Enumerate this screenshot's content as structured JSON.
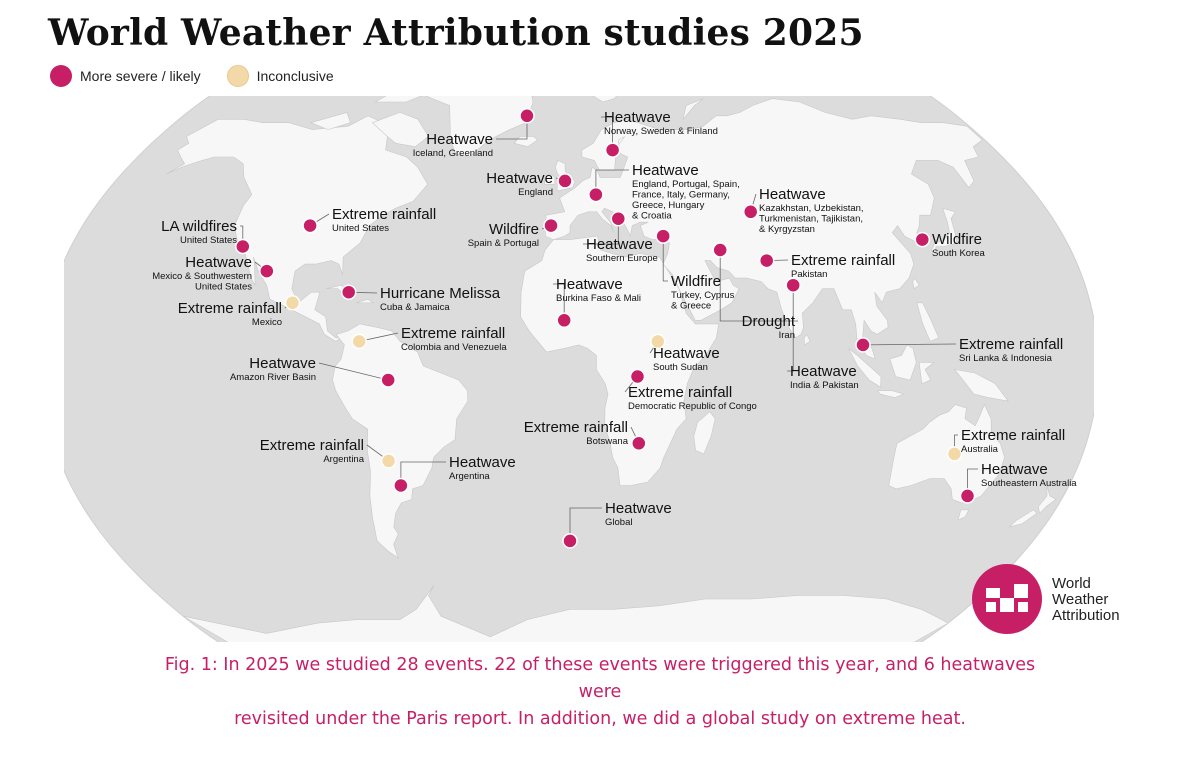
{
  "title": "World Weather Attribution studies 2025",
  "legend": {
    "severe": {
      "label": "More severe / likely",
      "color": "#c71f66"
    },
    "inconclusive": {
      "label": "Inconclusive",
      "color": "#f4d9a8"
    }
  },
  "events": [
    {
      "title": "Heatwave",
      "sub": [
        "Norway, Sweden & Finland"
      ],
      "status": "severe",
      "lon": 18,
      "lat": 62
    },
    {
      "title": "Heatwave",
      "sub": [
        "Iceland, Greenland"
      ],
      "status": "severe",
      "lon": -20,
      "lat": 72
    },
    {
      "title": "Heatwave",
      "sub": [
        "England"
      ],
      "status": "severe",
      "lon": -2,
      "lat": 53
    },
    {
      "title": "Heatwave",
      "sub": [
        "England, Portugal, Spain,",
        "France, Italy, Germany,",
        "Greece, Hungary",
        "& Croatia"
      ],
      "status": "severe",
      "lon": 10,
      "lat": 49
    },
    {
      "title": "Heatwave",
      "sub": [
        "Kazakhstan, Uzbekistan,",
        "Turkmenistan, Tajikistan,",
        "& Kyrgyzstan"
      ],
      "status": "severe",
      "lon": 68,
      "lat": 44
    },
    {
      "title": "Extreme rainfall",
      "sub": [
        "United States"
      ],
      "status": "severe",
      "lon": -96,
      "lat": 40
    },
    {
      "title": "LA wildfires",
      "sub": [
        "United States"
      ],
      "status": "severe",
      "lon": -118,
      "lat": 34
    },
    {
      "title": "Wildfire",
      "sub": [
        "Spain & Portugal"
      ],
      "status": "severe",
      "lon": -7,
      "lat": 40
    },
    {
      "title": "Heatwave",
      "sub": [
        "Southern Europe"
      ],
      "status": "severe",
      "lon": 18,
      "lat": 42
    },
    {
      "title": "Wildfire",
      "sub": [
        "South Korea"
      ],
      "status": "severe",
      "lon": 128,
      "lat": 36
    },
    {
      "title": "Heatwave",
      "sub": [
        "Mexico & Southwestern",
        "United States"
      ],
      "status": "severe",
      "lon": -107,
      "lat": 27
    },
    {
      "title": "Wildfire",
      "sub": [
        "Turkey, Cyprus",
        "& Greece"
      ],
      "status": "severe",
      "lon": 34,
      "lat": 37
    },
    {
      "title": "Extreme rainfall",
      "sub": [
        "Pakistan"
      ],
      "status": "severe",
      "lon": 70,
      "lat": 30
    },
    {
      "title": "Hurricane Melissa",
      "sub": [
        "Cuba & Jamaica"
      ],
      "status": "severe",
      "lon": -77,
      "lat": 21
    },
    {
      "title": "Extreme rainfall",
      "sub": [
        "Mexico"
      ],
      "status": "inconclusive",
      "lon": -96,
      "lat": 18
    },
    {
      "title": "Heatwave",
      "sub": [
        "Burkina Faso & Mali"
      ],
      "status": "severe",
      "lon": -2,
      "lat": 13
    },
    {
      "title": "Drought",
      "sub": [
        "Iran"
      ],
      "status": "severe",
      "lon": 54,
      "lat": 33
    },
    {
      "title": "Heatwave",
      "sub": [
        "India & Pakistan"
      ],
      "status": "severe",
      "lon": 78,
      "lat": 23
    },
    {
      "title": "Extreme rainfall",
      "sub": [
        "Colombia and Venezuela"
      ],
      "status": "inconclusive",
      "lon": -72,
      "lat": 7
    },
    {
      "title": "Extreme rainfall",
      "sub": [
        "Sri Lanka & Indonesia"
      ],
      "status": "severe",
      "lon": 100,
      "lat": 6
    },
    {
      "title": "Heatwave",
      "sub": [
        "Amazon River Basin"
      ],
      "status": "severe",
      "lon": -62,
      "lat": -4
    },
    {
      "title": "Heatwave",
      "sub": [
        "South Sudan"
      ],
      "status": "inconclusive",
      "lon": 30,
      "lat": 7
    },
    {
      "title": "Extreme rainfall",
      "sub": [
        "Democratic Republic of Congo"
      ],
      "status": "severe",
      "lon": 23,
      "lat": -3
    },
    {
      "title": "Extreme rainfall",
      "sub": [
        "Botswana"
      ],
      "status": "severe",
      "lon": 24,
      "lat": -22
    },
    {
      "title": "Extreme rainfall",
      "sub": [
        "Argentina"
      ],
      "status": "inconclusive",
      "lon": -64,
      "lat": -27
    },
    {
      "title": "Heatwave",
      "sub": [
        "Argentina"
      ],
      "status": "severe",
      "lon": -61,
      "lat": -34
    },
    {
      "title": "Extreme rainfall",
      "sub": [
        "Australia"
      ],
      "status": "inconclusive",
      "lon": 135,
      "lat": -25
    },
    {
      "title": "Heatwave",
      "sub": [
        "Southeastern Australia"
      ],
      "status": "severe",
      "lon": 145,
      "lat": -37
    },
    {
      "title": "Heatwave",
      "sub": [
        "Global"
      ],
      "status": "severe",
      "lon": 0,
      "lat": -50
    }
  ],
  "logo": {
    "lines": [
      "World",
      "Weather",
      "Attribution"
    ],
    "color": "#c71f66"
  },
  "caption": {
    "line1": "Fig. 1: In 2025 we studied 28 events. 22 of these events were triggered this year, and 6 heatwaves were",
    "line2": "revisited under the Paris report. In addition, we did a global study on extreme heat."
  }
}
